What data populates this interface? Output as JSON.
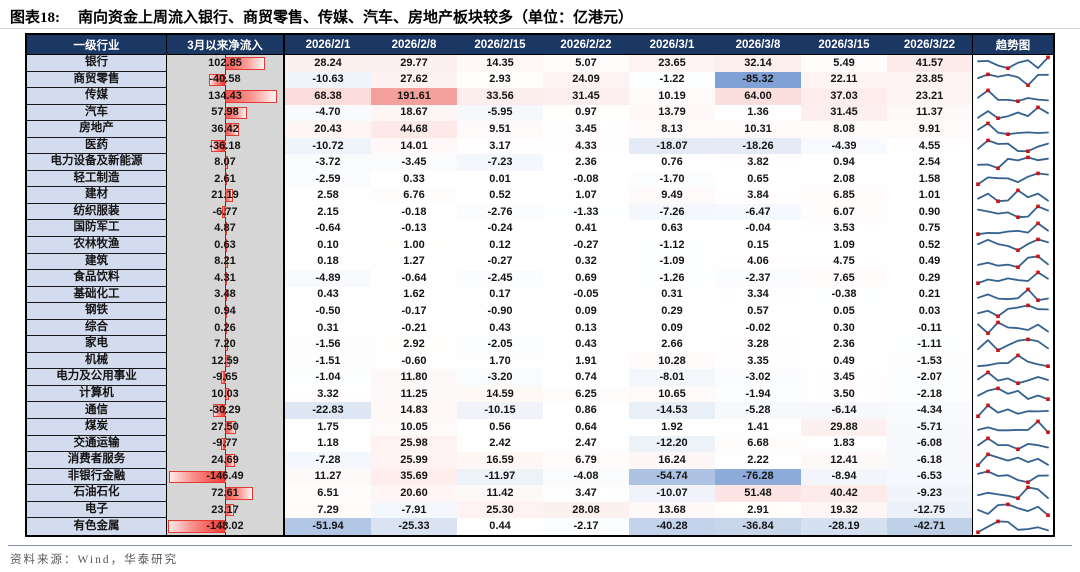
{
  "title": {
    "prefix": "图表18:",
    "text": "南向资金上周流入银行、商贸零售、传媒、汽车、房地产板块较多（单位：亿港元）"
  },
  "source": "资料来源：Wind，华泰研究",
  "chart_data": {
    "type": "table",
    "title": "南向资金周度净流入分行业（亿港元）",
    "columns": [
      "一级行业",
      "3月以来净流入",
      "2026/2/1",
      "2026/2/8",
      "2026/2/15",
      "2026/2/22",
      "2026/3/1",
      "2026/3/8",
      "2026/3/15",
      "2026/3/22",
      "趋势图"
    ],
    "rows": [
      {
        "industry": "银行",
        "since_march": "102.85",
        "weekly": [
          "28.24",
          "29.77",
          "14.35",
          "5.07",
          "23.65",
          "32.14",
          "5.49",
          "41.57"
        ]
      },
      {
        "industry": "商贸零售",
        "since_march": "-40.58",
        "weekly": [
          "-10.63",
          "27.62",
          "2.93",
          "24.09",
          "-1.22",
          "-85.32",
          "22.11",
          "23.85"
        ]
      },
      {
        "industry": "传媒",
        "since_march": "134.43",
        "weekly": [
          "68.38",
          "191.61",
          "33.56",
          "31.45",
          "10.19",
          "64.00",
          "37.03",
          "23.21"
        ]
      },
      {
        "industry": "汽车",
        "since_march": "57.98",
        "weekly": [
          "-4.70",
          "18.67",
          "-5.95",
          "0.97",
          "13.79",
          "1.36",
          "31.45",
          "11.37"
        ]
      },
      {
        "industry": "房地产",
        "since_march": "36.42",
        "weekly": [
          "20.43",
          "44.68",
          "9.51",
          "3.45",
          "8.13",
          "10.31",
          "8.08",
          "9.91"
        ]
      },
      {
        "industry": "医药",
        "since_march": "-36.18",
        "weekly": [
          "-10.72",
          "14.01",
          "3.17",
          "4.33",
          "-18.07",
          "-18.26",
          "-4.39",
          "4.55"
        ]
      },
      {
        "industry": "电力设备及新能源",
        "since_march": "8.07",
        "weekly": [
          "-3.72",
          "-3.45",
          "-7.23",
          "2.36",
          "0.76",
          "3.82",
          "0.94",
          "2.54"
        ]
      },
      {
        "industry": "轻工制造",
        "since_march": "2.61",
        "weekly": [
          "-2.59",
          "0.33",
          "0.01",
          "-0.08",
          "-1.70",
          "0.65",
          "2.08",
          "1.58"
        ]
      },
      {
        "industry": "建材",
        "since_march": "21.19",
        "weekly": [
          "2.58",
          "6.76",
          "0.52",
          "1.07",
          "9.49",
          "3.84",
          "6.85",
          "1.01"
        ]
      },
      {
        "industry": "纺织服装",
        "since_march": "-6.77",
        "weekly": [
          "2.15",
          "-0.18",
          "-2.76",
          "-1.33",
          "-7.26",
          "-6.47",
          "6.07",
          "0.90"
        ]
      },
      {
        "industry": "国防军工",
        "since_march": "4.87",
        "weekly": [
          "-0.64",
          "-0.13",
          "-0.24",
          "0.41",
          "0.63",
          "-0.04",
          "3.53",
          "0.75"
        ]
      },
      {
        "industry": "农林牧渔",
        "since_march": "0.63",
        "weekly": [
          "0.10",
          "1.00",
          "0.12",
          "-0.27",
          "-1.12",
          "0.15",
          "1.09",
          "0.52"
        ]
      },
      {
        "industry": "建筑",
        "since_march": "8.21",
        "weekly": [
          "0.18",
          "1.27",
          "-0.27",
          "0.32",
          "-1.09",
          "4.06",
          "4.75",
          "0.49"
        ]
      },
      {
        "industry": "食品饮料",
        "since_march": "4.31",
        "weekly": [
          "-4.89",
          "-0.64",
          "-2.45",
          "0.69",
          "-1.26",
          "-2.37",
          "7.65",
          "0.29"
        ]
      },
      {
        "industry": "基础化工",
        "since_march": "3.48",
        "weekly": [
          "0.43",
          "1.62",
          "0.17",
          "-0.05",
          "0.31",
          "3.34",
          "-0.38",
          "0.21"
        ]
      },
      {
        "industry": "钢铁",
        "since_march": "0.94",
        "weekly": [
          "-0.50",
          "-0.17",
          "-0.90",
          "0.09",
          "0.29",
          "0.57",
          "0.05",
          "0.03"
        ]
      },
      {
        "industry": "综合",
        "since_march": "0.26",
        "weekly": [
          "0.31",
          "-0.21",
          "0.43",
          "0.13",
          "0.09",
          "-0.02",
          "0.30",
          "-0.11"
        ]
      },
      {
        "industry": "家电",
        "since_march": "7.20",
        "weekly": [
          "-1.56",
          "2.92",
          "-2.05",
          "0.43",
          "2.66",
          "3.28",
          "2.36",
          "-1.11"
        ]
      },
      {
        "industry": "机械",
        "since_march": "12.59",
        "weekly": [
          "-1.51",
          "-0.60",
          "1.70",
          "1.91",
          "10.28",
          "3.35",
          "0.49",
          "-1.53"
        ]
      },
      {
        "industry": "电力及公用事业",
        "since_march": "-9.65",
        "weekly": [
          "-1.04",
          "11.80",
          "-3.20",
          "0.74",
          "-8.01",
          "-3.02",
          "3.45",
          "-2.07"
        ]
      },
      {
        "industry": "计算机",
        "since_march": "10.03",
        "weekly": [
          "3.32",
          "11.25",
          "14.59",
          "6.25",
          "10.65",
          "-1.94",
          "3.50",
          "-2.18"
        ]
      },
      {
        "industry": "通信",
        "since_march": "-30.29",
        "weekly": [
          "-22.83",
          "14.83",
          "-10.15",
          "0.86",
          "-14.53",
          "-5.28",
          "-6.14",
          "-4.34"
        ]
      },
      {
        "industry": "煤炭",
        "since_march": "27.50",
        "weekly": [
          "1.75",
          "10.05",
          "0.56",
          "0.64",
          "1.92",
          "1.41",
          "29.88",
          "-5.71"
        ]
      },
      {
        "industry": "交通运输",
        "since_march": "-9.77",
        "weekly": [
          "1.18",
          "25.98",
          "2.42",
          "2.47",
          "-12.20",
          "6.68",
          "1.83",
          "-6.08"
        ]
      },
      {
        "industry": "消费者服务",
        "since_march": "24.69",
        "weekly": [
          "-7.28",
          "25.99",
          "16.59",
          "6.79",
          "16.24",
          "2.22",
          "12.41",
          "-6.18"
        ]
      },
      {
        "industry": "非银行金融",
        "since_march": "-146.49",
        "weekly": [
          "11.27",
          "35.69",
          "-11.97",
          "-4.08",
          "-54.74",
          "-76.28",
          "-8.94",
          "-6.53"
        ]
      },
      {
        "industry": "石油石化",
        "since_march": "72.61",
        "weekly": [
          "6.51",
          "20.60",
          "11.42",
          "3.47",
          "-10.07",
          "51.48",
          "40.42",
          "-9.23"
        ]
      },
      {
        "industry": "电子",
        "since_march": "23.17",
        "weekly": [
          "7.29",
          "-7.91",
          "25.30",
          "28.08",
          "13.68",
          "2.91",
          "19.32",
          "-12.75"
        ]
      },
      {
        "industry": "有色金属",
        "since_march": "-148.02",
        "weekly": [
          "-51.94",
          "-25.33",
          "0.44",
          "-2.17",
          "-40.28",
          "-36.84",
          "-28.19",
          "-42.71"
        ]
      }
    ],
    "legend_position": "none",
    "grid": false,
    "heatmap_rule": "red shade = inflow intensity, blue shade = outflow intensity; sparkline marks weekly high/low in red"
  },
  "colors": {
    "header_bg": "#1B3763",
    "header_text": "#FFFFFF",
    "label_bg": "#D3DCEE",
    "bar_column_bg": "#D6D6D6",
    "bar_red": "#F23D37",
    "bar_border": "#E23B34",
    "cell_pos_max": "#F4A09C",
    "cell_neg_max": "#80A1D4",
    "sparkline_line": "#35618F",
    "sparkline_marker": "#C81414",
    "source_rule": "#8496B0"
  },
  "scales": {
    "bar_axis_max": 148.02,
    "cell_pos_max_value": 191.61,
    "cell_neg_max_value": 85.32
  }
}
